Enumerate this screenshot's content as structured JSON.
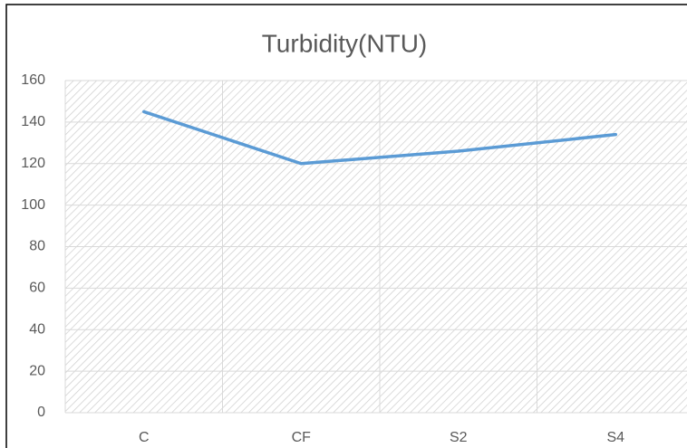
{
  "chart_data": {
    "type": "line",
    "title": "Turbidity(NTU)",
    "categories": [
      "C",
      "CF",
      "S2",
      "S4"
    ],
    "values": [
      145,
      120,
      126,
      134
    ],
    "color": "#5b9bd5",
    "ylim": [
      0,
      160
    ],
    "yticks": [
      0,
      20,
      40,
      60,
      80,
      100,
      120,
      140,
      160
    ],
    "grid": true
  }
}
